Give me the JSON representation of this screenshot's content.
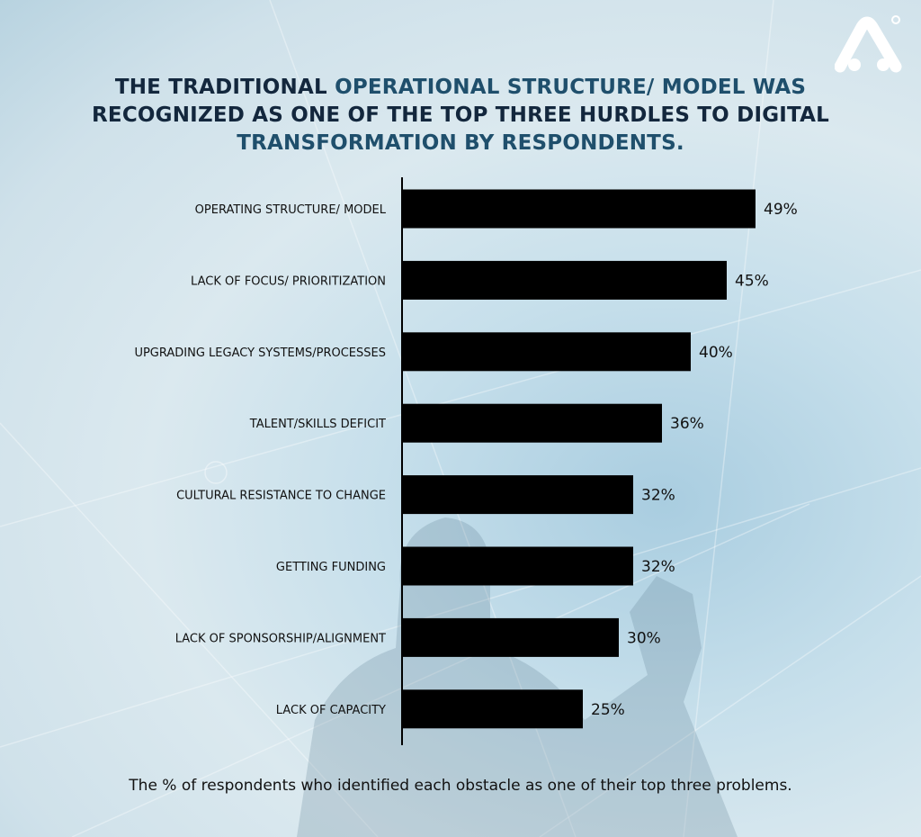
{
  "title": {
    "part1": "THE TRADITIONAL ",
    "part2": "OPERATIONAL STRUCTURE/ MODEL WAS",
    "part3": "RECOGNIZED AS ONE OF THE TOP THREE HURDLES TO DIGITAL",
    "part4": "TRANSFORMATION BY RESPONDENTS."
  },
  "footnote": "The % of respondents who identified each obstacle as one of their top three problems.",
  "colors": {
    "bar": "#000000",
    "title_dark": "#13273d",
    "title_accent": "#1f4f6c",
    "logo": "#ffffff"
  },
  "logo_icon": "brand-logo-icon",
  "chart_data": {
    "type": "bar",
    "orientation": "horizontal",
    "categories": [
      "OPERATING STRUCTURE/ MODEL",
      "LACK OF FOCUS/ PRIORITIZATION",
      "UPGRADING LEGACY SYSTEMS/PROCESSES",
      "TALENT/SKILLS DEFICIT",
      "CULTURAL RESISTANCE TO CHANGE",
      "GETTING FUNDING",
      "LACK OF SPONSORSHIP/ALIGNMENT",
      "LACK OF CAPACITY"
    ],
    "values": [
      49,
      45,
      40,
      36,
      32,
      32,
      30,
      25
    ],
    "value_labels": [
      "49%",
      "45%",
      "40%",
      "36%",
      "32%",
      "32%",
      "30%",
      "25%"
    ],
    "unit": "%",
    "xlim": [
      0,
      100
    ],
    "grid": false,
    "legend": "none"
  }
}
